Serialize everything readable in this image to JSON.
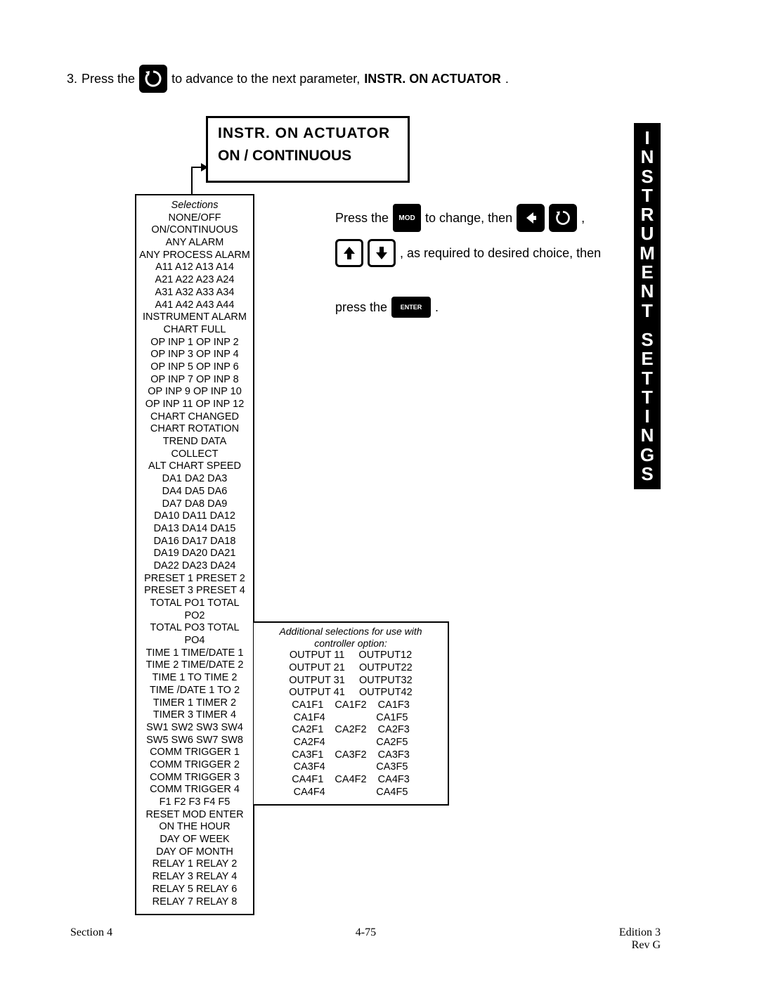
{
  "step": {
    "number": "3.",
    "pre": "Press  the",
    "post": "to advance to the next parameter,",
    "param": "INSTR. ON ACTUATOR",
    "end": "."
  },
  "display": {
    "line1": "INSTR.  ON  ACTUATOR",
    "line2": "ON / CONTINUOUS"
  },
  "selections": {
    "heading": "Selections",
    "lines": [
      "NONE/OFF",
      "ON/CONTINUOUS",
      "ANY ALARM",
      "ANY PROCESS ALARM",
      "A11  A12  A13  A14",
      "A21  A22  A23  A24",
      "A31  A32  A33  A34",
      "A41  A42  A43  A44",
      "INSTRUMENT ALARM",
      "CHART FULL",
      "OP INP 1    OP INP 2",
      "OP INP 3    OP INP 4",
      "OP INP 5    OP INP 6",
      "OP INP 7    OP INP 8",
      "OP INP 9    OP INP 10",
      "OP INP 11    OP INP 12",
      "CHART CHANGED",
      "CHART  ROTATION",
      "TREND DATA COLLECT",
      "ALT CHART SPEED",
      "DA1   DA2   DA3",
      "DA4   DA5   DA6",
      "DA7   DA8   DA9",
      "DA10   DA11   DA12",
      "DA13   DA14   DA15",
      "DA16   DA17   DA18",
      "DA19   DA20   DA21",
      "DA22   DA23   DA24",
      "PRESET 1    PRESET 2",
      "PRESET 3    PRESET 4",
      "TOTAL PO1  TOTAL PO2",
      "TOTAL PO3  TOTAL PO4",
      "TIME 1    TIME/DATE 1",
      "TIME 2    TIME/DATE 2",
      "TIME 1 TO TIME 2",
      "TIME /DATE 1 TO 2",
      "TIMER 1    TIMER 2",
      "TIMER 3    TIMER 4",
      "SW1 SW2  SW3  SW4",
      "SW5  SW6  SW7  SW8",
      "COMM TRIGGER 1",
      "COMM TRIGGER 2",
      "COMM TRIGGER 3",
      "COMM TRIGGER 4",
      "F1   F2   F3   F4   F5",
      "RESET   MOD   ENTER",
      "ON THE HOUR",
      "DAY OF WEEK",
      "DAY OF MONTH",
      "RELAY 1         RELAY 2",
      "RELAY 3         RELAY 4",
      "RELAY 5         RELAY 6",
      "RELAY 7         RELAY 8"
    ]
  },
  "controller": {
    "heading": "Additional selections for use with controller option:",
    "lines": [
      "OUTPUT 11     OUTPUT12",
      "OUTPUT 21     OUTPUT22",
      "OUTPUT 31     OUTPUT32",
      "OUTPUT 41     OUTPUT42",
      "CA1F1    CA1F2    CA1F3",
      "CA1F4                  CA1F5",
      "CA2F1    CA2F2    CA2F3",
      "CA2F4                  CA2F5",
      "CA3F1    CA3F2    CA3F3",
      "CA3F4                  CA3F5",
      "CA4F1    CA4F2    CA4F3",
      "CA4F4                  CA4F5"
    ]
  },
  "instructions": {
    "press_the": "Press the",
    "mod": "MOD",
    "to_change_then": "to change, then",
    "as_required": ", as required to desired choice, then",
    "press_the2": "press  the",
    "enter": "ENTER",
    "period": "."
  },
  "sidetab": {
    "word1": "INSTRUMENT",
    "word2": "SETTINGS"
  },
  "footer": {
    "left": "Section 4",
    "center": "4-75",
    "right1": "Edition 3",
    "right2": "Rev G"
  }
}
